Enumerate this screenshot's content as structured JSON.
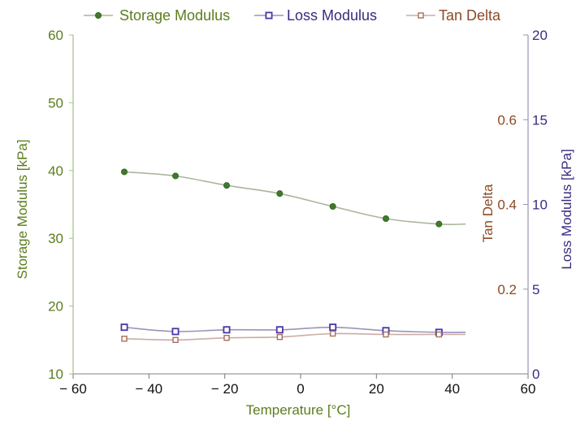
{
  "chart_data": {
    "type": "line",
    "title": "",
    "xlabel": "Temperature [°C]",
    "xlim": [
      -60,
      60
    ],
    "xticks": [
      -60,
      -40,
      -20,
      0,
      20,
      40,
      60
    ],
    "xtick_labels": [
      "− 60",
      "− 40",
      "− 20",
      "0",
      "20",
      "40",
      "60"
    ],
    "x": [
      -46.5,
      -33,
      -19.5,
      -5.5,
      8.5,
      22.5,
      36.5
    ],
    "line_end_x": 43.5,
    "grid": false,
    "legend_position": "top",
    "axes": {
      "left": {
        "label": "Storage Modulus [kPa]",
        "range": [
          10,
          60
        ],
        "ticks": [
          10,
          20,
          30,
          40,
          50,
          60
        ],
        "tick_labels": [
          "10",
          "20",
          "30",
          "40",
          "50",
          "60"
        ],
        "color": "#5b7d1e"
      },
      "tan_delta": {
        "label": "Tan Delta",
        "range": [
          0,
          0.8
        ],
        "ticks": [
          0.2,
          0.4,
          0.6
        ],
        "tick_labels": [
          "0.2",
          "0.4",
          "0.6"
        ],
        "color": "#8a4b26"
      },
      "right": {
        "label": "Loss Modulus [kPa]",
        "range": [
          0,
          20
        ],
        "ticks": [
          0,
          5,
          10,
          15,
          20
        ],
        "tick_labels": [
          "0",
          "5",
          "10",
          "15",
          "20"
        ],
        "color": "#3b2a80"
      }
    },
    "series": [
      {
        "name": "Storage Modulus",
        "axis": "left",
        "values": [
          39.8,
          39.2,
          37.8,
          36.6,
          34.7,
          32.9,
          32.1
        ],
        "end_value": 32.1,
        "marker": "filled-circle",
        "color": "#3f7a2a",
        "line_color": "#a9b79c"
      },
      {
        "name": "Loss Modulus",
        "axis": "right",
        "values": [
          2.75,
          2.5,
          2.6,
          2.6,
          2.75,
          2.55,
          2.45
        ],
        "end_value": 2.45,
        "marker": "open-square",
        "color": "#4a35a8",
        "line_color": "#9c93b8"
      },
      {
        "name": "Tan Delta",
        "axis": "tan_delta",
        "values": [
          0.083,
          0.08,
          0.085,
          0.087,
          0.095,
          0.093,
          0.093
        ],
        "end_value": 0.093,
        "marker": "open-square-small",
        "color": "#a5705c",
        "line_color": "#c9ada5"
      }
    ]
  }
}
